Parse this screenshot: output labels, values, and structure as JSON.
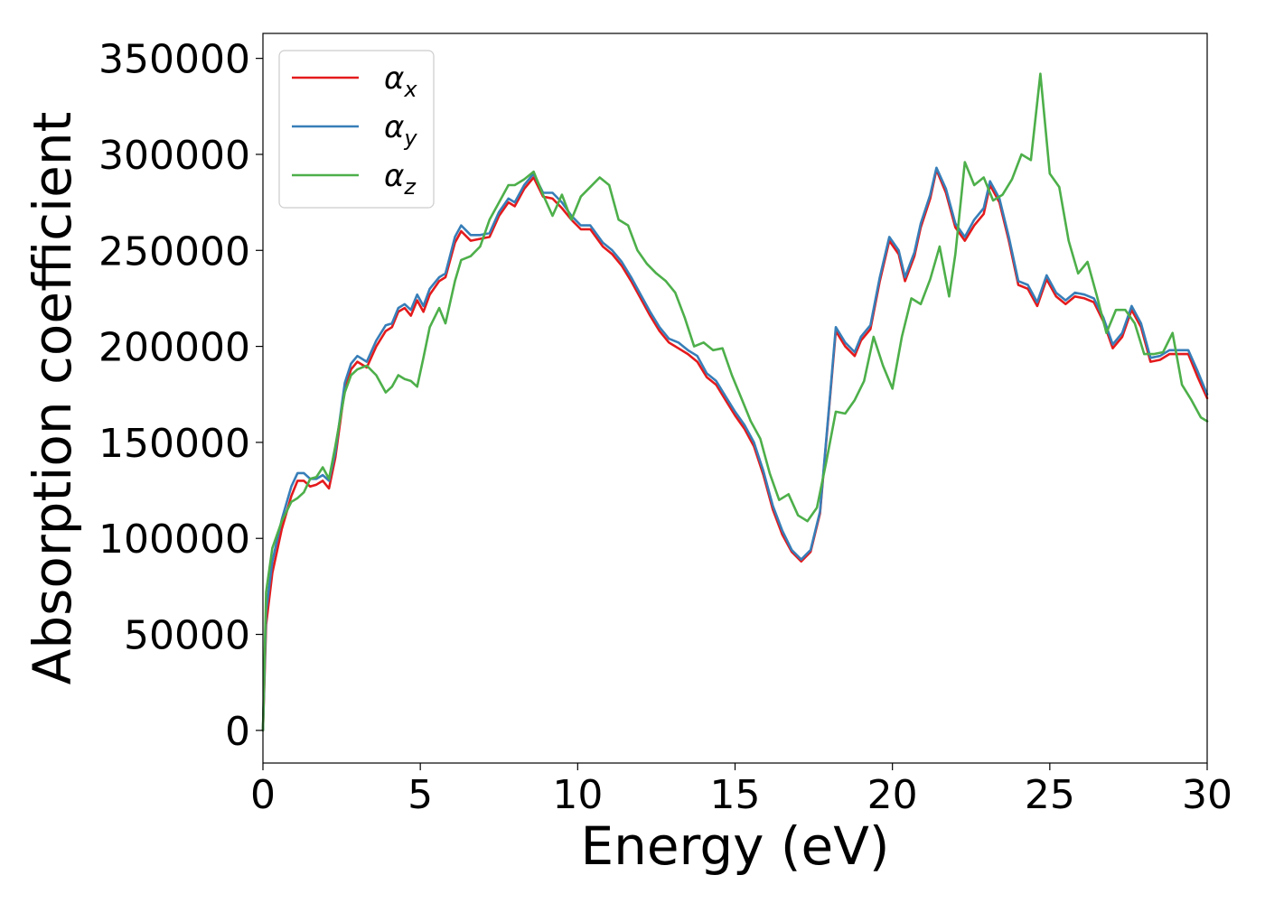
{
  "chart_data": {
    "type": "line",
    "title": "",
    "xlabel": "Energy (eV)",
    "ylabel": "Absorption coefficient",
    "xlim": [
      0,
      30
    ],
    "ylim": [
      -17000,
      363000
    ],
    "xticks": [
      0,
      5,
      10,
      15,
      20,
      25,
      30
    ],
    "yticks": [
      0,
      50000,
      100000,
      150000,
      200000,
      250000,
      300000,
      350000
    ],
    "grid": false,
    "legend_position": "top-left",
    "series": [
      {
        "name": "αx",
        "legend_base": "α",
        "legend_sub": "x",
        "color": "#e41a1c",
        "x": [
          0,
          0.1,
          0.3,
          0.6,
          0.9,
          1.1,
          1.3,
          1.5,
          1.7,
          1.9,
          2.1,
          2.3,
          2.6,
          2.8,
          3.0,
          3.3,
          3.6,
          3.9,
          4.1,
          4.3,
          4.5,
          4.7,
          4.9,
          5.1,
          5.3,
          5.6,
          5.8,
          6.1,
          6.3,
          6.6,
          6.9,
          7.2,
          7.5,
          7.8,
          8.0,
          8.3,
          8.6,
          8.9,
          9.2,
          9.5,
          9.8,
          10.1,
          10.4,
          10.8,
          11.1,
          11.4,
          11.7,
          12.0,
          12.3,
          12.6,
          12.9,
          13.2,
          13.5,
          13.8,
          14.1,
          14.4,
          14.7,
          15.0,
          15.3,
          15.6,
          15.9,
          16.2,
          16.5,
          16.8,
          17.1,
          17.4,
          17.7,
          18.0,
          18.2,
          18.5,
          18.8,
          19.0,
          19.3,
          19.6,
          19.9,
          20.2,
          20.4,
          20.7,
          20.9,
          21.2,
          21.4,
          21.7,
          22.0,
          22.3,
          22.6,
          22.9,
          23.1,
          23.4,
          23.7,
          24.0,
          24.3,
          24.6,
          24.9,
          25.2,
          25.5,
          25.8,
          26.1,
          26.4,
          26.7,
          27.0,
          27.3,
          27.6,
          27.9,
          28.2,
          28.5,
          28.8,
          29.1,
          29.4,
          29.7,
          30.0
        ],
        "values": [
          0,
          55000,
          82000,
          105000,
          122000,
          130000,
          130000,
          127000,
          128000,
          130000,
          126000,
          142000,
          178000,
          188000,
          192000,
          189000,
          200000,
          208000,
          210000,
          218000,
          220000,
          216000,
          224000,
          218000,
          227000,
          234000,
          236000,
          254000,
          260000,
          255000,
          256000,
          257000,
          268000,
          275000,
          273000,
          282000,
          288000,
          278000,
          277000,
          272000,
          266000,
          261000,
          261000,
          252000,
          248000,
          242000,
          234000,
          225000,
          216000,
          208000,
          202000,
          199000,
          196000,
          192000,
          184000,
          180000,
          172000,
          164000,
          157000,
          148000,
          133000,
          115000,
          102000,
          93000,
          88000,
          93000,
          113000,
          170000,
          208000,
          200000,
          195000,
          203000,
          209000,
          234000,
          255000,
          248000,
          234000,
          247000,
          262000,
          277000,
          292000,
          280000,
          262000,
          255000,
          263000,
          269000,
          284000,
          275000,
          255000,
          232000,
          230000,
          221000,
          235000,
          226000,
          222000,
          226000,
          225000,
          223000,
          213000,
          199000,
          205000,
          219000,
          210000,
          192000,
          193000,
          196000,
          196000,
          196000,
          184000,
          173000
        ]
      },
      {
        "name": "αy",
        "legend_base": "α",
        "legend_sub": "y",
        "color": "#377eb8",
        "x": [
          0,
          0.1,
          0.3,
          0.6,
          0.9,
          1.1,
          1.3,
          1.5,
          1.7,
          1.9,
          2.1,
          2.3,
          2.6,
          2.8,
          3.0,
          3.3,
          3.6,
          3.9,
          4.1,
          4.3,
          4.5,
          4.7,
          4.9,
          5.1,
          5.3,
          5.6,
          5.8,
          6.1,
          6.3,
          6.6,
          6.9,
          7.2,
          7.5,
          7.8,
          8.0,
          8.3,
          8.6,
          8.9,
          9.2,
          9.5,
          9.8,
          10.1,
          10.4,
          10.8,
          11.1,
          11.4,
          11.7,
          12.0,
          12.3,
          12.6,
          12.9,
          13.2,
          13.5,
          13.8,
          14.1,
          14.4,
          14.7,
          15.0,
          15.3,
          15.6,
          15.9,
          16.2,
          16.5,
          16.8,
          17.1,
          17.4,
          17.7,
          18.0,
          18.2,
          18.5,
          18.8,
          19.0,
          19.3,
          19.6,
          19.9,
          20.2,
          20.4,
          20.7,
          20.9,
          21.2,
          21.4,
          21.7,
          22.0,
          22.3,
          22.6,
          22.9,
          23.1,
          23.4,
          23.7,
          24.0,
          24.3,
          24.6,
          24.9,
          25.2,
          25.5,
          25.8,
          26.1,
          26.4,
          26.7,
          27.0,
          27.3,
          27.6,
          27.9,
          28.2,
          28.5,
          28.8,
          29.1,
          29.4,
          29.7,
          30.0
        ],
        "values": [
          0,
          62000,
          88000,
          110000,
          127000,
          134000,
          134000,
          131000,
          131000,
          133000,
          130000,
          145000,
          181000,
          191000,
          195000,
          192000,
          203000,
          211000,
          212000,
          220000,
          222000,
          219000,
          227000,
          221000,
          230000,
          236000,
          238000,
          257000,
          263000,
          258000,
          258000,
          259000,
          270000,
          277000,
          275000,
          284000,
          290000,
          280000,
          280000,
          275000,
          268000,
          263000,
          263000,
          254000,
          250000,
          244000,
          236000,
          227000,
          218000,
          210000,
          204000,
          202000,
          198000,
          195000,
          186000,
          182000,
          174000,
          166000,
          159000,
          150000,
          135000,
          117000,
          104000,
          94000,
          89000,
          94000,
          114000,
          171000,
          210000,
          202000,
          197000,
          205000,
          211000,
          236000,
          257000,
          250000,
          236000,
          249000,
          264000,
          279000,
          293000,
          282000,
          264000,
          257000,
          266000,
          272000,
          286000,
          277000,
          257000,
          234000,
          232000,
          223000,
          237000,
          228000,
          224000,
          228000,
          227000,
          225000,
          215000,
          201000,
          207000,
          221000,
          212000,
          194000,
          195000,
          198000,
          198000,
          198000,
          187000,
          175000
        ]
      },
      {
        "name": "αz",
        "legend_base": "α",
        "legend_sub": "z",
        "color": "#4daf4a",
        "x": [
          0,
          0.1,
          0.3,
          0.6,
          0.9,
          1.1,
          1.3,
          1.5,
          1.7,
          1.9,
          2.1,
          2.3,
          2.6,
          2.8,
          3.0,
          3.3,
          3.6,
          3.9,
          4.1,
          4.3,
          4.5,
          4.7,
          4.9,
          5.1,
          5.3,
          5.6,
          5.8,
          6.1,
          6.3,
          6.6,
          6.9,
          7.2,
          7.5,
          7.8,
          8.0,
          8.3,
          8.6,
          8.9,
          9.2,
          9.5,
          9.8,
          10.1,
          10.4,
          10.7,
          11.0,
          11.3,
          11.6,
          11.9,
          12.2,
          12.5,
          12.8,
          13.1,
          13.4,
          13.7,
          14.0,
          14.3,
          14.6,
          14.9,
          15.2,
          15.5,
          15.8,
          16.1,
          16.4,
          16.7,
          17.0,
          17.3,
          17.6,
          17.9,
          18.2,
          18.5,
          18.8,
          19.1,
          19.4,
          19.7,
          20.0,
          20.3,
          20.6,
          20.9,
          21.2,
          21.5,
          21.8,
          22.0,
          22.3,
          22.6,
          22.9,
          23.2,
          23.5,
          23.8,
          24.1,
          24.4,
          24.7,
          25.0,
          25.3,
          25.6,
          25.9,
          26.2,
          26.5,
          26.8,
          27.1,
          27.4,
          27.7,
          28.0,
          28.3,
          28.6,
          28.9,
          29.2,
          29.5,
          29.8,
          30.0
        ],
        "values": [
          0,
          72000,
          95000,
          109000,
          119000,
          121000,
          124000,
          131000,
          132000,
          137000,
          131000,
          148000,
          176000,
          185000,
          188000,
          190000,
          185000,
          176000,
          179000,
          185000,
          183000,
          182000,
          179000,
          194000,
          210000,
          220000,
          212000,
          234000,
          245000,
          247000,
          252000,
          266000,
          275000,
          284000,
          284000,
          287000,
          291000,
          279000,
          268000,
          279000,
          266000,
          278000,
          283000,
          288000,
          284000,
          266000,
          263000,
          250000,
          243000,
          238000,
          234000,
          228000,
          215000,
          200000,
          202000,
          198000,
          199000,
          185000,
          173000,
          161000,
          152000,
          134000,
          120000,
          123000,
          112000,
          109000,
          116000,
          140000,
          166000,
          165000,
          172000,
          182000,
          205000,
          190000,
          178000,
          205000,
          225000,
          222000,
          235000,
          252000,
          226000,
          248000,
          296000,
          284000,
          288000,
          276000,
          279000,
          287000,
          300000,
          297000,
          342000,
          290000,
          283000,
          255000,
          238000,
          244000,
          226000,
          207000,
          219000,
          219000,
          212000,
          196000,
          196000,
          197000,
          207000,
          180000,
          172000,
          163000,
          161000
        ]
      }
    ]
  }
}
